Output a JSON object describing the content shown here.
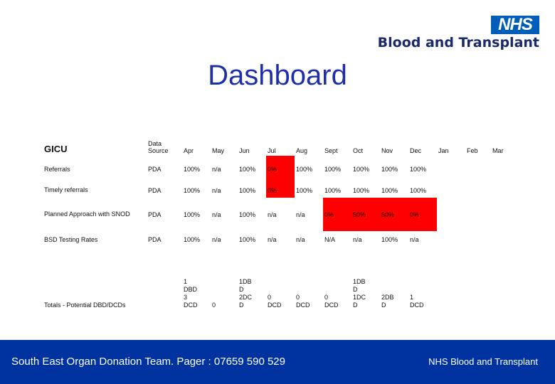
{
  "logo": {
    "badge": "NHS",
    "org": "Blood and Transplant"
  },
  "title": "Dashboard",
  "table": {
    "header": {
      "unit": "GICU",
      "source": "Data Source",
      "months": [
        "Apr",
        "May",
        "Jun",
        "Jul",
        "Aug",
        "Sept",
        "Oct",
        "Nov",
        "Dec",
        "Jan",
        "Feb",
        "Mar"
      ]
    },
    "rows": [
      {
        "label": "Referrals",
        "source": "PDA",
        "values": [
          "100%",
          "n/a",
          "100%",
          "0%",
          "100%",
          "100%",
          "100%",
          "100%",
          "100%",
          "",
          "",
          ""
        ]
      },
      {
        "label": "Timely referrals",
        "source": "PDA",
        "values": [
          "100%",
          "n/a",
          "100%",
          "0%",
          "100%",
          "100%",
          "100%",
          "100%",
          "100%",
          "",
          "",
          ""
        ]
      },
      {
        "label": "Planned Approach with SNOD",
        "source": "PDA",
        "values": [
          "100%",
          "n/a",
          "100%",
          "n/a",
          "n/a",
          "0%",
          "50%",
          "50%",
          "0%",
          "",
          "",
          ""
        ]
      },
      {
        "label": "BSD Testing Rates",
        "source": "PDA",
        "values": [
          "100%",
          "n/a",
          "100%",
          "n/a",
          "n/a",
          "N/A",
          "n/a",
          "100%",
          "n/a",
          "",
          "",
          ""
        ]
      },
      {
        "label": "Totals - Potential DBD/DCDs",
        "source": "",
        "values": [
          "1\nDBD\n3\nDCD",
          "0",
          "1DB\nD\n2DC\nD",
          "0\nDCD",
          "0\nDCD",
          "0\nDCD",
          "1DB\nD\n1DC\nD",
          "2DB\nD",
          "1\nDCD",
          "",
          "",
          ""
        ]
      }
    ],
    "red_status_color": "#ff0000"
  },
  "footer": {
    "left": "South East Organ Donation Team. Pager : 07659 590 529",
    "right": "NHS Blood and Transplant"
  }
}
